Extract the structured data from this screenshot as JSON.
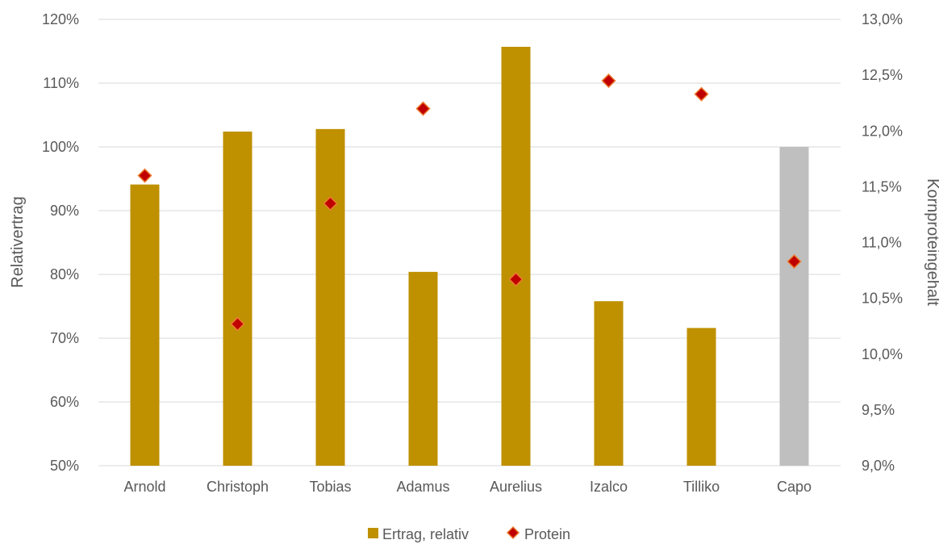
{
  "chart_data": {
    "type": "bar",
    "categories": [
      "Arnold",
      "Christoph",
      "Tobias",
      "Adamus",
      "Aurelius",
      "Izalco",
      "Tilliko",
      "Capo"
    ],
    "series": [
      {
        "name": "Ertrag, relativ",
        "kind": "bar",
        "axis": "left",
        "color": "#bf9000",
        "highlight_color": "#bfbfbf",
        "highlight_index": 7,
        "values": [
          94.1,
          102.4,
          102.8,
          80.4,
          115.7,
          75.8,
          71.6,
          100.0
        ]
      },
      {
        "name": "Protein",
        "kind": "scatter",
        "axis": "right",
        "marker": "diamond",
        "color": "#c00000",
        "edge_color": "#ed7d31",
        "values": [
          11.6,
          10.27,
          11.35,
          12.2,
          10.67,
          12.45,
          12.33,
          10.83
        ]
      }
    ],
    "left_axis": {
      "label": "Relativertrag",
      "min": 50,
      "max": 120,
      "step": 10,
      "ticks": [
        "50%",
        "60%",
        "70%",
        "80%",
        "90%",
        "100%",
        "110%",
        "120%"
      ]
    },
    "right_axis": {
      "label": "Kornproteingehalt",
      "min": 9.0,
      "max": 13.0,
      "step": 0.5,
      "ticks": [
        "9,0%",
        "9,5%",
        "10,0%",
        "10,5%",
        "11,0%",
        "11,5%",
        "12,0%",
        "12,5%",
        "13,0%"
      ]
    },
    "grid": true,
    "legend_position": "bottom"
  }
}
